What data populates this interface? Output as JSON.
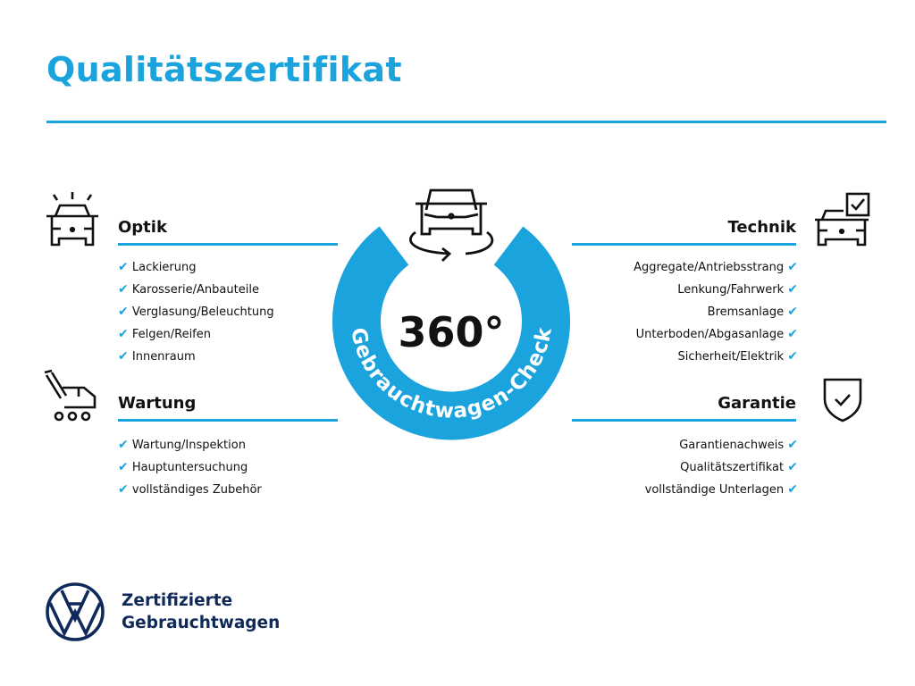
{
  "title": "Qualitätszertifikat",
  "colors": {
    "accent": "#1aa3dc",
    "brand_navy": "#0f2a5a"
  },
  "center": {
    "degrees": "360°",
    "ring_text": "Gebrauchtwagen-Check",
    "icon": "car-rotate-icon"
  },
  "sections": {
    "optik": {
      "heading": "Optik",
      "icon": "car-lights-icon",
      "items": [
        "Lackierung",
        "Karosserie/Anbauteile",
        "Verglasung/Beleuchtung",
        "Felgen/Reifen",
        "Innenraum"
      ]
    },
    "wartung": {
      "heading": "Wartung",
      "icon": "service-truck-icon",
      "items": [
        "Wartung/Inspektion",
        "Hauptuntersuchung",
        "vollständiges Zubehör"
      ]
    },
    "technik": {
      "heading": "Technik",
      "icon": "car-checkbox-icon",
      "items": [
        "Aggregate/Antriebsstrang",
        "Lenkung/Fahrwerk",
        "Bremsanlage",
        "Unterboden/Abgasanlage",
        "Sicherheit/Elektrik"
      ]
    },
    "garantie": {
      "heading": "Garantie",
      "icon": "shield-check-icon",
      "items": [
        "Garantienachweis",
        "Qualitätszertifikat",
        "vollständige Unterlagen"
      ]
    }
  },
  "check_mark": "✔",
  "brand": {
    "line1": "Zertifizierte",
    "line2": "Gebrauchtwagen",
    "logo": "vw-logo"
  }
}
